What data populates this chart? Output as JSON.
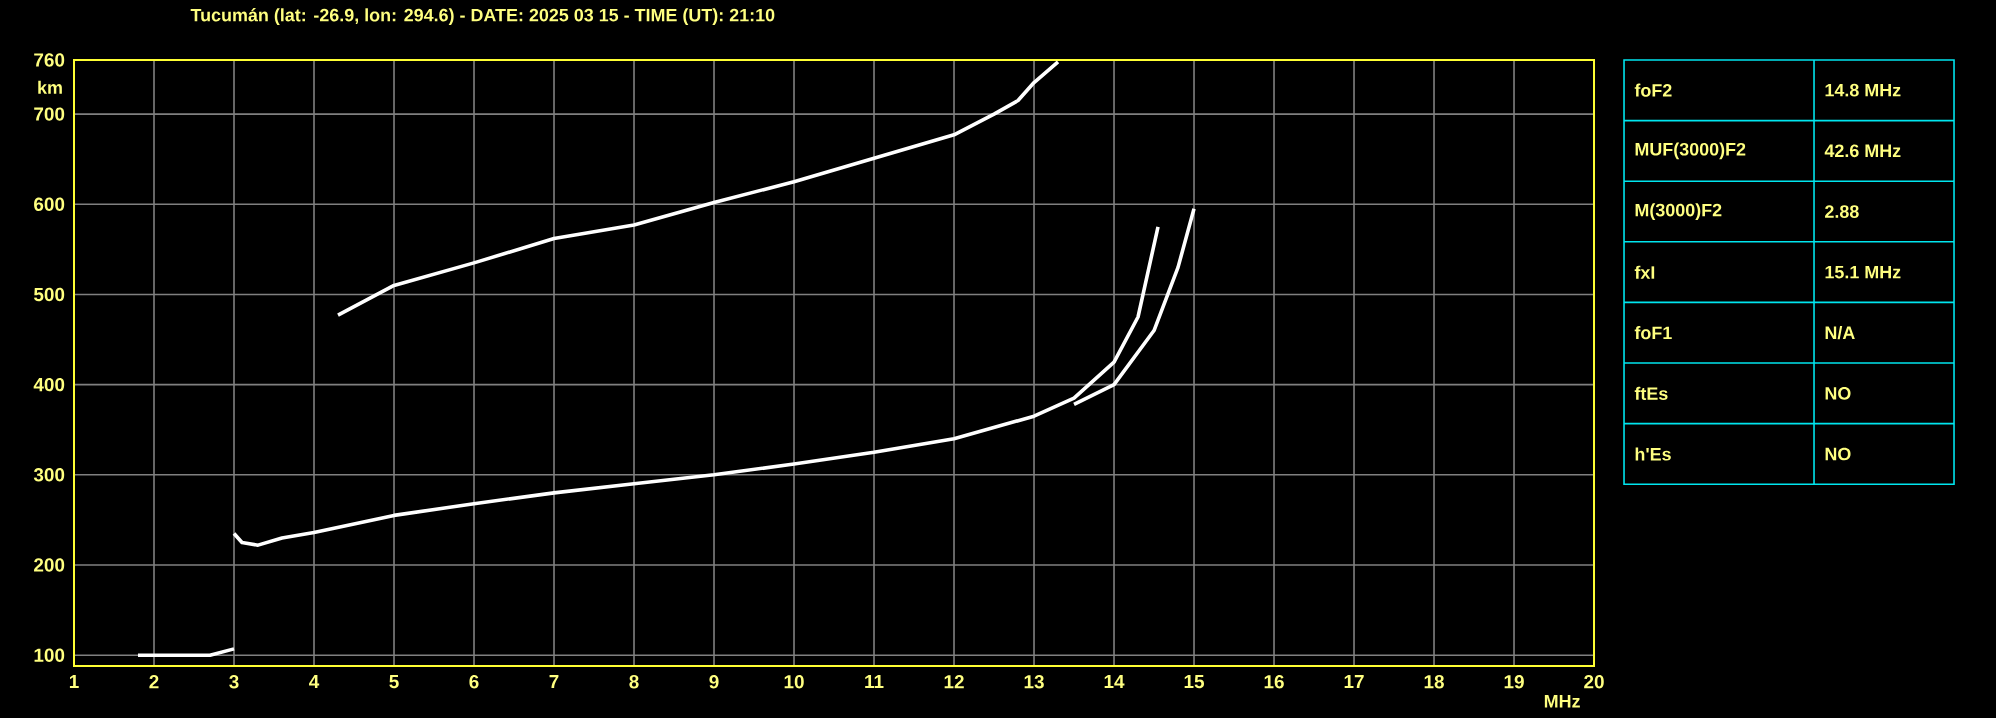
{
  "chart_data": [
    {
      "type": "line",
      "title": "Tucumán (lat: -26.9, lon: 294.6) - DATE: 2025 03 15 - TIME (UT): 21:10",
      "xlabel": "MHz",
      "ylabel": "km",
      "xlim": [
        1,
        20
      ],
      "ylim": [
        88,
        760
      ],
      "xticks": [
        1,
        2,
        3,
        4,
        5,
        6,
        7,
        8,
        9,
        10,
        11,
        12,
        13,
        14,
        15,
        16,
        17,
        18,
        19,
        20
      ],
      "yticks": [
        100,
        200,
        300,
        400,
        500,
        600,
        700,
        760
      ],
      "grid": true,
      "marker": "none",
      "line_style": "solid",
      "series": [
        {
          "color": "#ffffff",
          "x": [
            3.0,
            3.1,
            3.3,
            3.6,
            4,
            5,
            6,
            7,
            8,
            9,
            10,
            11,
            12,
            13,
            13.5,
            14,
            14.3,
            14.55
          ],
          "values": [
            235,
            225,
            222,
            230,
            236,
            255,
            268,
            280,
            290,
            300,
            312,
            325,
            340,
            365,
            385,
            425,
            475,
            575
          ]
        },
        {
          "color": "#ffffff",
          "x": [
            13.5,
            14,
            14.5,
            14.8,
            15
          ],
          "values": [
            378,
            400,
            460,
            530,
            595
          ]
        },
        {
          "color": "#ffffff",
          "x": [
            4.3,
            5,
            6,
            7,
            8,
            9,
            10,
            11,
            12,
            12.5,
            12.8,
            13.0,
            13.3
          ],
          "values": [
            477,
            510,
            535,
            562,
            577,
            602,
            625,
            651,
            677,
            700,
            715,
            735,
            758
          ]
        },
        {
          "color": "#ffffff",
          "x": [
            1.8,
            2.0,
            2.5,
            2.7,
            3.0
          ],
          "values": [
            100,
            100,
            100,
            100,
            107
          ]
        }
      ]
    },
    {
      "type": "other",
      "annotations": [
        "foF2",
        "14.8 MHz",
        "MUF(3000)F2",
        "42.6 MHz",
        "M(3000)F2",
        "2.88",
        "fxI",
        "15.1 MHz",
        "foF1",
        "N/A",
        "ftEs",
        "NO",
        "h'Es",
        "NO"
      ]
    }
  ]
}
